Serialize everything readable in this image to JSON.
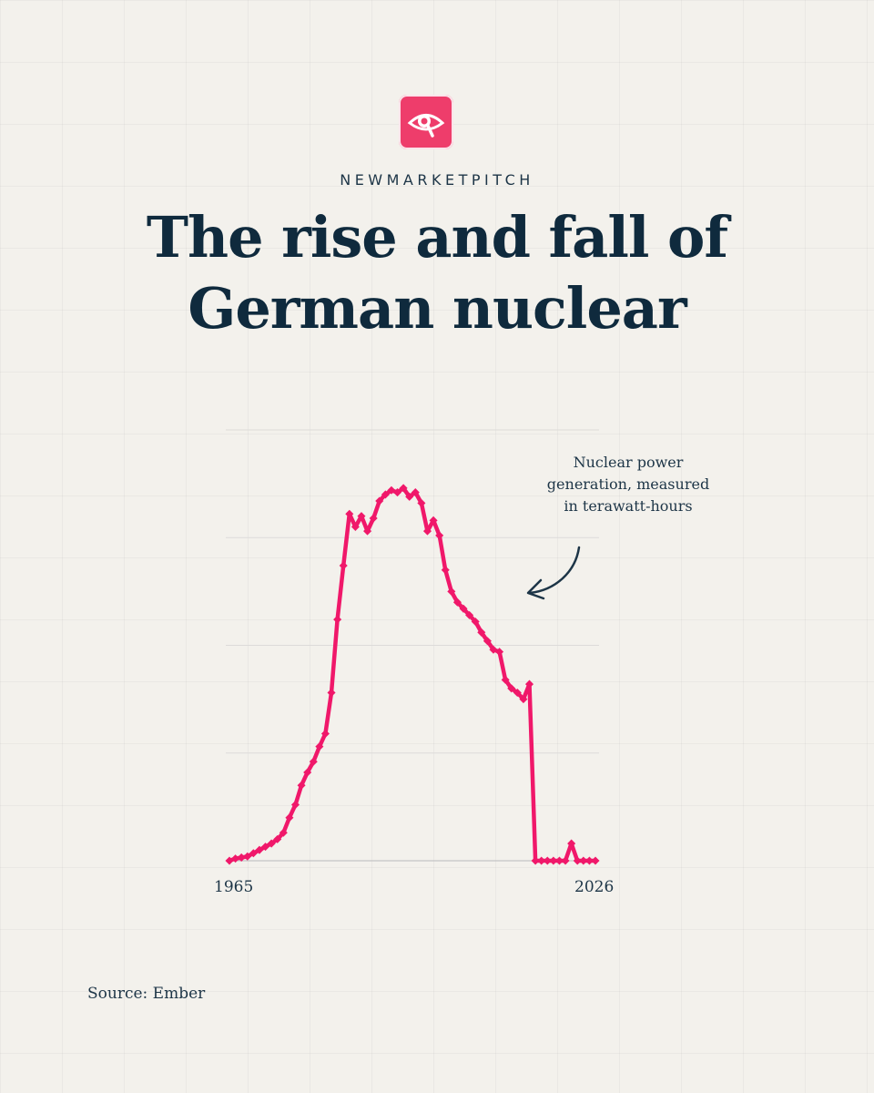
{
  "brand": {
    "name": "NEWMARKETPITCH",
    "logo_icon": "eye-magnifier-icon",
    "logo_color": "#ee3d6b"
  },
  "header": {
    "title_line1": "The rise and fall of",
    "title_line2": "German nuclear"
  },
  "annotation": {
    "line1": "Nuclear power",
    "line2": "generation, measured",
    "line3": "in terawatt-hours"
  },
  "source": "Source: Ember",
  "chart_data": {
    "type": "line",
    "title": "The rise and fall of German nuclear",
    "xlabel": "",
    "ylabel": "",
    "x_tick_labels": [
      "1965",
      "2026"
    ],
    "xlim": [
      1965,
      2026
    ],
    "ylim": [
      0,
      200
    ],
    "grid": true,
    "line_color": "#f0186a",
    "series": [
      {
        "x": [
          1965,
          1966,
          1967,
          1968,
          1969,
          1970,
          1971,
          1972,
          1973,
          1974,
          1975,
          1976,
          1977,
          1978,
          1979,
          1980,
          1981,
          1982,
          1983,
          1984,
          1985,
          1986,
          1987,
          1988,
          1989,
          1990,
          1991,
          1992,
          1993,
          1994,
          1995,
          1996,
          1997,
          1998,
          1999,
          2000,
          2001,
          2002,
          2003,
          2004,
          2005,
          2006,
          2007,
          2008,
          2009,
          2010,
          2011,
          2012,
          2013,
          2014,
          2015,
          2016,
          2017,
          2018,
          2019,
          2020,
          2021,
          2022,
          2023,
          2024,
          2025,
          2026
        ],
        "y": [
          0,
          1,
          1.5,
          2,
          3.5,
          5,
          6.5,
          8,
          10,
          13,
          20,
          26,
          35,
          41,
          46,
          53,
          59,
          78,
          112,
          137,
          161,
          155,
          160,
          153,
          159,
          167,
          170,
          172,
          171,
          173,
          169,
          171,
          166,
          153,
          158,
          151,
          135,
          125,
          120,
          117,
          114,
          111,
          106,
          102,
          98,
          97,
          84,
          80,
          78,
          75,
          82,
          0,
          0,
          0,
          0,
          0,
          0,
          8,
          0,
          0,
          0,
          0
        ]
      }
    ]
  }
}
